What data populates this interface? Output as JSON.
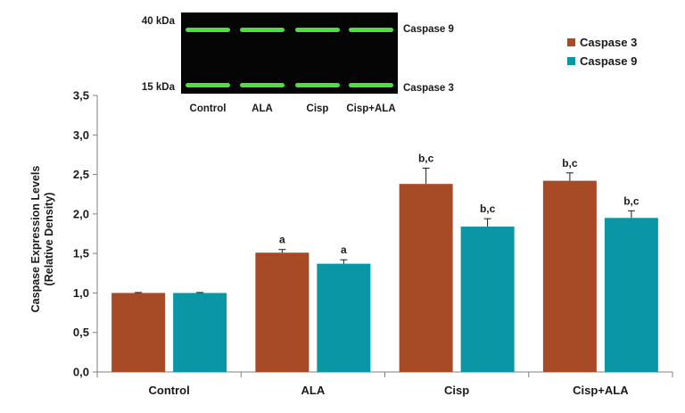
{
  "chart_data": {
    "type": "bar",
    "categories": [
      "Control",
      "ALA",
      "Cisp",
      "Cisp+ALA"
    ],
    "series": [
      {
        "name": "Caspase 3",
        "color": "#A74B26",
        "values": [
          1.0,
          1.51,
          2.38,
          2.42
        ],
        "errors": [
          0.0,
          0.04,
          0.2,
          0.1
        ],
        "annotations": [
          "",
          "a",
          "b,c",
          "b,c"
        ]
      },
      {
        "name": "Caspase 9",
        "color": "#0B96A5",
        "values": [
          1.0,
          1.37,
          1.84,
          1.95
        ],
        "errors": [
          0.0,
          0.05,
          0.1,
          0.09
        ],
        "annotations": [
          "",
          "a",
          "b,c",
          "b,c"
        ]
      }
    ],
    "ylabel": [
      "Caspase Expression Levels",
      "(Relative Density)"
    ],
    "ylim": [
      0,
      3.5
    ],
    "ytick_labels": [
      "0,0",
      "0,5",
      "1,0",
      "1,5",
      "2,0",
      "2,5",
      "3,0",
      "3,5"
    ],
    "grid": false,
    "legend": "top-right"
  },
  "blot": {
    "marker_top": "40 kDa",
    "marker_bottom": "15 kDa",
    "band_top": "Caspase 9",
    "band_bottom": "Caspase 3",
    "lanes": [
      "Control",
      "ALA",
      "Cisp",
      "Cisp+ALA"
    ],
    "band_color": "#4EE03E"
  }
}
